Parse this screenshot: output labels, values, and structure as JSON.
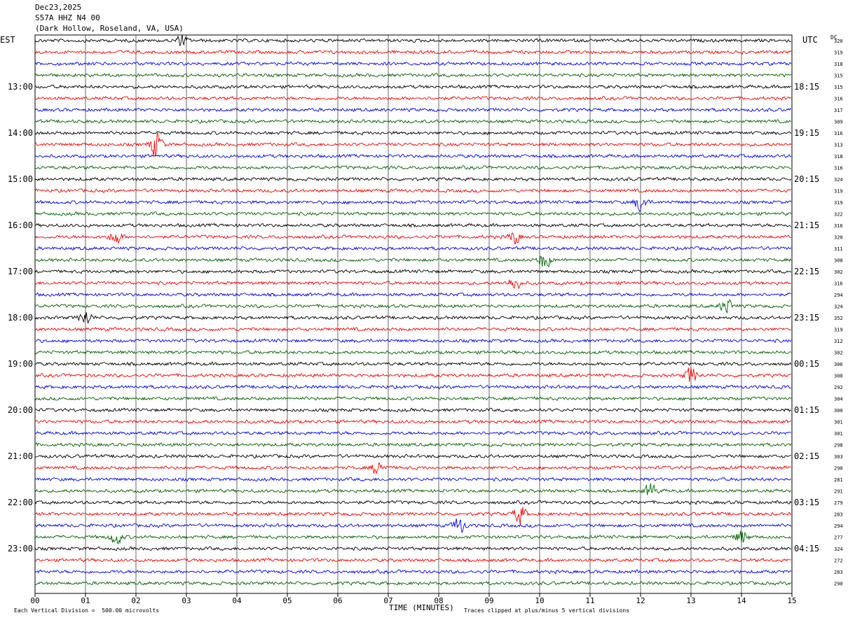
{
  "header": {
    "date": "Dec23,2025",
    "station": "S57A HHZ N4 00",
    "location": "(Dark Hollow, Roseland, VA, USA)"
  },
  "left_tz": "EST",
  "right_tz": "UTC",
  "dc_label": "DC",
  "footer": {
    "scale": "Each Vertical Division =  500.00 microvolts",
    "xlabel": "TIME (MINUTES)",
    "clip": "Traces clipped at plus/minus 5 vertical divisions"
  },
  "chart_data": {
    "type": "helicorder",
    "xlabel": "TIME (MINUTES)",
    "x_ticks": [
      "00",
      "01",
      "02",
      "03",
      "04",
      "05",
      "06",
      "07",
      "08",
      "09",
      "10",
      "11",
      "12",
      "13",
      "14",
      "15"
    ],
    "xlim": [
      0,
      15
    ],
    "minutes_per_line": 15,
    "trace_colors": [
      "#000000",
      "#ff0000",
      "#0000ff",
      "#006400"
    ],
    "est_labels": [
      {
        "row": 4,
        "label": "13:00"
      },
      {
        "row": 8,
        "label": "14:00"
      },
      {
        "row": 12,
        "label": "15:00"
      },
      {
        "row": 16,
        "label": "16:00"
      },
      {
        "row": 20,
        "label": "17:00"
      },
      {
        "row": 24,
        "label": "18:00"
      },
      {
        "row": 28,
        "label": "19:00"
      },
      {
        "row": 32,
        "label": "20:00"
      },
      {
        "row": 36,
        "label": "21:00"
      },
      {
        "row": 40,
        "label": "22:00"
      },
      {
        "row": 44,
        "label": "23:00"
      }
    ],
    "utc_labels": [
      {
        "row": 4,
        "label": "18:15"
      },
      {
        "row": 8,
        "label": "19:15"
      },
      {
        "row": 12,
        "label": "20:15"
      },
      {
        "row": 16,
        "label": "21:15"
      },
      {
        "row": 20,
        "label": "22:15"
      },
      {
        "row": 24,
        "label": "23:15"
      },
      {
        "row": 28,
        "label": "00:15"
      },
      {
        "row": 32,
        "label": "01:15"
      },
      {
        "row": 36,
        "label": "02:15"
      },
      {
        "row": 40,
        "label": "03:15"
      },
      {
        "row": 44,
        "label": "04:15"
      }
    ],
    "dc_offsets": [
      320,
      319,
      318,
      315,
      315,
      316,
      317,
      309,
      316,
      313,
      318,
      316,
      324,
      319,
      319,
      322,
      316,
      320,
      311,
      308,
      302,
      316,
      294,
      324,
      352,
      319,
      312,
      302,
      306,
      300,
      292,
      304,
      300,
      301,
      301,
      298,
      303,
      290,
      281,
      291,
      279,
      283,
      294,
      277,
      324,
      272,
      283,
      290
    ],
    "events": [
      {
        "row": 0,
        "minute": 2.9,
        "amplitude": 8
      },
      {
        "row": 9,
        "minute": 2.4,
        "amplitude": 22
      },
      {
        "row": 14,
        "minute": 12.0,
        "amplitude": 14
      },
      {
        "row": 17,
        "minute": 1.6,
        "amplitude": 12
      },
      {
        "row": 17,
        "minute": 9.5,
        "amplitude": 10
      },
      {
        "row": 19,
        "minute": 10.1,
        "amplitude": 14
      },
      {
        "row": 21,
        "minute": 9.5,
        "amplitude": 12
      },
      {
        "row": 23,
        "minute": 13.7,
        "amplitude": 12
      },
      {
        "row": 24,
        "minute": 1.0,
        "amplitude": 12
      },
      {
        "row": 29,
        "minute": 13.0,
        "amplitude": 14
      },
      {
        "row": 37,
        "minute": 6.8,
        "amplitude": 12
      },
      {
        "row": 39,
        "minute": 12.2,
        "amplitude": 12
      },
      {
        "row": 41,
        "minute": 9.6,
        "amplitude": 16
      },
      {
        "row": 42,
        "minute": 8.4,
        "amplitude": 14
      },
      {
        "row": 43,
        "minute": 1.6,
        "amplitude": 12
      },
      {
        "row": 43,
        "minute": 14.0,
        "amplitude": 12
      }
    ]
  }
}
